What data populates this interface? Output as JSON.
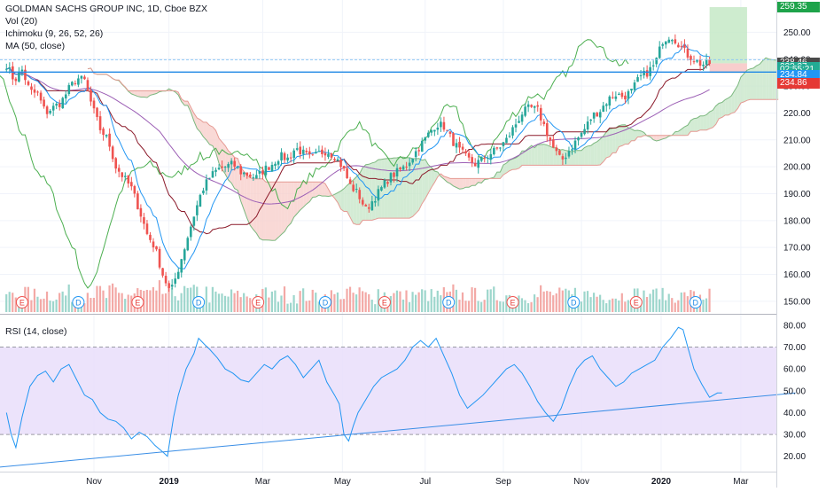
{
  "header": {
    "symbol_line": "GOLDMAN SACHS GROUP INC, 1D, Cboe BZX",
    "indicators": [
      "Vol (20)",
      "Ichimoku (9, 26, 52, 26)",
      "MA (50, close)"
    ]
  },
  "price_tags": [
    {
      "label": "259.35",
      "value": 259.35,
      "color": "#1ea34a"
    },
    {
      "label": "238.46",
      "value": 238.46,
      "color": "#4a4a4a"
    },
    {
      "label": "238.27",
      "value": 236.9,
      "color": "#22ab94"
    },
    {
      "label": "02:55:21",
      "value": 235.9,
      "color": "#22ab94"
    },
    {
      "label": "234.84",
      "value": 233.9,
      "color": "#2196f3"
    },
    {
      "label": "234.86",
      "value": 230.9,
      "color": "#e53935"
    }
  ],
  "rsi_label": "RSI (14, close)",
  "x_axis_labels": [
    {
      "label": "Nov",
      "t": 5.6
    },
    {
      "label": "2019",
      "t": 10.4
    },
    {
      "label": "Mar",
      "t": 16.4
    },
    {
      "label": "May",
      "t": 21.5
    },
    {
      "label": "Jul",
      "t": 26.8
    },
    {
      "label": "Sep",
      "t": 31.8
    },
    {
      "label": "Nov",
      "t": 36.8
    },
    {
      "label": "2020",
      "t": 41.9
    },
    {
      "label": "Mar",
      "t": 47.0
    }
  ],
  "colors": {
    "up": "#26a69a",
    "down": "#ef5350",
    "price_line": "#131722",
    "tenkan": "#2196f3",
    "kijun": "#8b1a2a",
    "chikou": "#4caf50",
    "ma50": "#9c5fb5",
    "rsi": "#2196f3",
    "rsi_band": "#e9defa",
    "cloud_up": "#c8e6c9",
    "cloud_down": "#f8d0cc",
    "hline": "#1e88e5"
  },
  "chart_data": [
    {
      "type": "candlestick",
      "title": "GOLDMAN SACHS GROUP INC, 1D, Cboe BZX",
      "x_unit": "weeks (Oct 2018 – Feb 2020)",
      "ylim": [
        146,
        262
      ],
      "y_ticks": [
        150,
        160,
        170,
        180,
        190,
        200,
        210,
        220,
        230,
        240,
        250
      ],
      "close_path": [
        [
          0,
          238
        ],
        [
          0.5,
          232
        ],
        [
          1,
          236
        ],
        [
          1.5,
          228
        ],
        [
          2,
          227
        ],
        [
          2.5,
          220
        ],
        [
          3,
          222
        ],
        [
          3.5,
          224
        ],
        [
          4,
          229
        ],
        [
          4.5,
          233
        ],
        [
          5,
          232
        ],
        [
          5.5,
          222
        ],
        [
          6,
          214
        ],
        [
          6.5,
          210
        ],
        [
          7,
          200
        ],
        [
          7.5,
          196
        ],
        [
          8,
          192
        ],
        [
          8.5,
          184
        ],
        [
          9,
          175
        ],
        [
          9.5,
          170
        ],
        [
          10,
          160
        ],
        [
          10.5,
          153
        ],
        [
          11,
          162
        ],
        [
          11.5,
          172
        ],
        [
          12,
          182
        ],
        [
          12.5,
          191
        ],
        [
          13,
          196
        ],
        [
          13.5,
          199
        ],
        [
          14,
          200
        ],
        [
          14.5,
          201
        ],
        [
          15,
          198
        ],
        [
          15.5,
          197
        ],
        [
          16,
          196
        ],
        [
          16.5,
          199
        ],
        [
          17,
          201
        ],
        [
          17.5,
          204
        ],
        [
          18,
          203
        ],
        [
          18.5,
          207
        ],
        [
          19,
          205
        ],
        [
          19.5,
          203
        ],
        [
          20,
          205
        ],
        [
          20.5,
          206
        ],
        [
          21,
          204
        ],
        [
          21.5,
          200
        ],
        [
          22,
          193
        ],
        [
          22.5,
          190
        ],
        [
          23,
          184
        ],
        [
          23.5,
          188
        ],
        [
          24,
          192
        ],
        [
          24.5,
          196
        ],
        [
          25,
          198
        ],
        [
          25.5,
          200
        ],
        [
          26,
          204
        ],
        [
          26.5,
          208
        ],
        [
          27,
          212
        ],
        [
          27.5,
          216
        ],
        [
          28,
          215
        ],
        [
          28.5,
          210
        ],
        [
          29,
          206
        ],
        [
          29.5,
          203
        ],
        [
          30,
          201
        ],
        [
          30.5,
          203
        ],
        [
          31,
          205
        ],
        [
          31.5,
          207
        ],
        [
          32,
          210
        ],
        [
          32.5,
          215
        ],
        [
          33,
          220
        ],
        [
          33.5,
          222
        ],
        [
          34,
          221
        ],
        [
          34.5,
          214
        ],
        [
          35,
          207
        ],
        [
          35.5,
          202
        ],
        [
          36,
          206
        ],
        [
          36.5,
          210
        ],
        [
          37,
          214
        ],
        [
          37.5,
          219
        ],
        [
          38,
          221
        ],
        [
          38.5,
          225
        ],
        [
          39,
          227
        ],
        [
          39.5,
          226
        ],
        [
          40,
          228
        ],
        [
          40.5,
          233
        ],
        [
          41,
          235
        ],
        [
          41.5,
          238
        ],
        [
          42,
          247
        ],
        [
          42.5,
          249
        ],
        [
          43,
          246
        ],
        [
          43.5,
          242
        ],
        [
          44,
          240
        ],
        [
          44.5,
          238
        ],
        [
          45,
          238.5
        ]
      ],
      "horizontal_lines": [
        {
          "value": 235.2,
          "color": "#1e88e5"
        },
        {
          "value": 239.8,
          "color": "#8fc7f4",
          "dashed": true
        }
      ],
      "projection_boxes": [
        {
          "t_start": 45.0,
          "t_end": 47.4,
          "y_low": 238.46,
          "y_high": 259.35,
          "color": "#c5e9c7"
        },
        {
          "t_start": 45.0,
          "t_end": 47.4,
          "y_low": 234.86,
          "y_high": 238.46,
          "color": "#f7c6c4"
        }
      ],
      "volume_event_markers": [
        {
          "label": "E",
          "t": 1.0
        },
        {
          "label": "D",
          "t": 4.6
        },
        {
          "label": "E",
          "t": 8.4
        },
        {
          "label": "D",
          "t": 12.3
        },
        {
          "label": "E",
          "t": 16.1
        },
        {
          "label": "D",
          "t": 20.4
        },
        {
          "label": "E",
          "t": 24.2
        },
        {
          "label": "D",
          "t": 28.3
        },
        {
          "label": "E",
          "t": 32.4
        },
        {
          "label": "D",
          "t": 36.3
        },
        {
          "label": "E",
          "t": 40.3
        },
        {
          "label": "D",
          "t": 44.1
        }
      ]
    },
    {
      "type": "line",
      "title": "RSI (14, close)",
      "ylim": [
        13,
        84
      ],
      "y_ticks": [
        20,
        30,
        40,
        50,
        60,
        70,
        80
      ],
      "band": [
        30,
        70
      ],
      "values": [
        [
          0,
          40
        ],
        [
          0.3,
          30
        ],
        [
          0.6,
          24
        ],
        [
          1.0,
          38
        ],
        [
          1.5,
          52
        ],
        [
          2,
          57
        ],
        [
          2.5,
          59
        ],
        [
          3,
          54
        ],
        [
          3.5,
          60
        ],
        [
          4,
          62
        ],
        [
          4.5,
          55
        ],
        [
          5,
          48
        ],
        [
          5.5,
          46
        ],
        [
          6,
          40
        ],
        [
          6.5,
          37
        ],
        [
          7,
          36
        ],
        [
          7.5,
          33
        ],
        [
          8,
          28
        ],
        [
          8.5,
          31
        ],
        [
          9,
          29
        ],
        [
          9.5,
          25
        ],
        [
          10,
          22
        ],
        [
          10.3,
          20
        ],
        [
          10.7,
          38
        ],
        [
          11,
          48
        ],
        [
          11.5,
          60
        ],
        [
          12,
          67
        ],
        [
          12.3,
          74
        ],
        [
          12.7,
          71
        ],
        [
          13,
          69
        ],
        [
          13.5,
          65
        ],
        [
          14,
          60
        ],
        [
          14.5,
          58
        ],
        [
          15,
          55
        ],
        [
          15.5,
          54
        ],
        [
          16,
          58
        ],
        [
          16.5,
          62
        ],
        [
          17,
          60
        ],
        [
          17.5,
          64
        ],
        [
          18,
          66
        ],
        [
          18.5,
          62
        ],
        [
          19,
          56
        ],
        [
          19.5,
          60
        ],
        [
          20,
          64
        ],
        [
          20.5,
          54
        ],
        [
          21,
          48
        ],
        [
          21.3,
          44
        ],
        [
          21.6,
          30
        ],
        [
          21.9,
          27
        ],
        [
          22.2,
          34
        ],
        [
          22.5,
          40
        ],
        [
          23,
          46
        ],
        [
          23.5,
          52
        ],
        [
          24,
          56
        ],
        [
          24.5,
          58
        ],
        [
          25,
          60
        ],
        [
          25.5,
          64
        ],
        [
          26,
          70
        ],
        [
          26.5,
          73
        ],
        [
          27,
          70
        ],
        [
          27.5,
          74
        ],
        [
          28,
          66
        ],
        [
          28.5,
          58
        ],
        [
          29,
          48
        ],
        [
          29.5,
          42
        ],
        [
          30,
          45
        ],
        [
          30.5,
          48
        ],
        [
          31,
          52
        ],
        [
          31.5,
          56
        ],
        [
          32,
          60
        ],
        [
          32.5,
          62
        ],
        [
          33,
          58
        ],
        [
          33.5,
          52
        ],
        [
          34,
          45
        ],
        [
          34.5,
          40
        ],
        [
          35,
          36
        ],
        [
          35.5,
          42
        ],
        [
          36,
          52
        ],
        [
          36.5,
          60
        ],
        [
          37,
          64
        ],
        [
          37.5,
          66
        ],
        [
          38,
          60
        ],
        [
          38.5,
          56
        ],
        [
          39,
          52
        ],
        [
          39.5,
          54
        ],
        [
          40,
          58
        ],
        [
          40.5,
          60
        ],
        [
          41,
          62
        ],
        [
          41.5,
          64
        ],
        [
          42,
          70
        ],
        [
          42.5,
          74
        ],
        [
          43,
          79
        ],
        [
          43.3,
          78
        ],
        [
          43.6,
          70
        ],
        [
          44,
          60
        ],
        [
          44.5,
          53
        ],
        [
          45,
          47
        ],
        [
          45.5,
          49
        ],
        [
          45.8,
          49
        ]
      ],
      "trendline": [
        [
          -2.0,
          14
        ],
        [
          50.5,
          49
        ]
      ]
    }
  ]
}
